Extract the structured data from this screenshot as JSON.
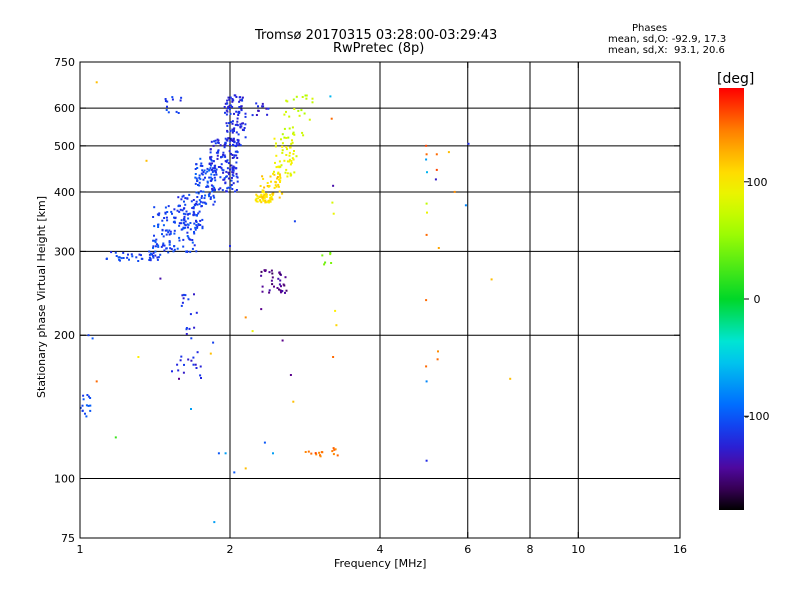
{
  "chart_data": {
    "type": "scatter",
    "title": "Tromsø 20170315 03:28:00-03:29:43",
    "subtitle": "RwPretec (8p)",
    "xlabel": "Frequency [MHz]",
    "ylabel": "Stationary phase Virtual Height [km]",
    "x_scale": "log",
    "y_scale": "log",
    "xlim": [
      1,
      16
    ],
    "ylim": [
      75,
      750
    ],
    "xticks": [
      1,
      2,
      4,
      6,
      8,
      10,
      16
    ],
    "xtick_labels": [
      "1",
      "2",
      "4",
      "6",
      "8",
      "10",
      "16"
    ],
    "yticks": [
      75,
      100,
      200,
      300,
      400,
      500,
      600,
      750
    ],
    "ytick_labels": [
      "75",
      "100",
      "200",
      "300",
      "400",
      "500",
      "600",
      "750"
    ],
    "x_gridlines": [
      2,
      4,
      6,
      8,
      10
    ],
    "y_gridlines": [
      100,
      200,
      300,
      400,
      500,
      600
    ],
    "grid": true,
    "legend": {
      "heading": "Phases",
      "lines": [
        "mean, sd,O: -92.9, 17.3",
        "mean, sd,X:  93.1, 20.6"
      ],
      "placement": "top-right"
    },
    "colorbar": {
      "label": "[deg]",
      "ticks": [
        100,
        0,
        -100
      ],
      "tick_labels": [
        "100",
        "0",
        "-100"
      ],
      "range": [
        -180,
        180
      ]
    },
    "clusters": [
      {
        "x_range": [
          1.13,
          1.45
        ],
        "h_range": [
          285,
          300
        ],
        "phase": -110,
        "n": 40
      },
      {
        "x_range": [
          1.4,
          1.72
        ],
        "h_range": [
          298,
          375
        ],
        "phase": -108,
        "n": 130
      },
      {
        "x_range": [
          1.55,
          1.78
        ],
        "h_range": [
          335,
          395
        ],
        "phase": -115,
        "n": 50
      },
      {
        "x_range": [
          1.7,
          1.88
        ],
        "h_range": [
          375,
          470
        ],
        "phase": -105,
        "n": 80
      },
      {
        "x_range": [
          1.82,
          2.08
        ],
        "h_range": [
          400,
          520
        ],
        "phase": -118,
        "n": 140
      },
      {
        "x_range": [
          1.95,
          2.15
        ],
        "h_range": [
          500,
          640
        ],
        "phase": -120,
        "n": 100
      },
      {
        "x_range": [
          1.48,
          1.6
        ],
        "h_range": [
          580,
          635
        ],
        "phase": -112,
        "n": 12
      },
      {
        "x_range": [
          2.2,
          2.4
        ],
        "h_range": [
          580,
          615
        ],
        "phase": -125,
        "n": 12
      },
      {
        "x_range": [
          2.25,
          2.42
        ],
        "h_range": [
          380,
          395
        ],
        "phase": 105,
        "n": 45
      },
      {
        "x_range": [
          2.3,
          2.55
        ],
        "h_range": [
          385,
          440
        ],
        "phase": 110,
        "n": 45
      },
      {
        "x_range": [
          2.45,
          2.72
        ],
        "h_range": [
          430,
          520
        ],
        "phase": 90,
        "n": 50
      },
      {
        "x_range": [
          2.55,
          2.95
        ],
        "h_range": [
          520,
          640
        ],
        "phase": 70,
        "n": 30
      },
      {
        "x_range": [
          2.3,
          2.6
        ],
        "h_range": [
          245,
          275
        ],
        "phase": -150,
        "n": 35
      },
      {
        "x_range": [
          1.6,
          1.72
        ],
        "h_range": [
          195,
          245
        ],
        "phase": -118,
        "n": 16
      },
      {
        "x_range": [
          1.55,
          1.75
        ],
        "h_range": [
          160,
          185
        ],
        "phase": -122,
        "n": 16
      },
      {
        "x_range": [
          1.0,
          1.05
        ],
        "h_range": [
          135,
          150
        ],
        "phase": -108,
        "n": 15
      },
      {
        "x_range": [
          2.8,
          3.1
        ],
        "h_range": [
          111,
          114
        ],
        "phase": 150,
        "n": 10
      },
      {
        "x_range": [
          3.2,
          3.3
        ],
        "h_range": [
          111,
          116
        ],
        "phase": 150,
        "n": 6
      },
      {
        "x_range": [
          3.05,
          3.2
        ],
        "h_range": [
          280,
          300
        ],
        "phase": 40,
        "n": 6
      }
    ],
    "points": [
      {
        "x": 1.04,
        "y": 200,
        "phase": -110
      },
      {
        "x": 1.06,
        "y": 197,
        "phase": -100
      },
      {
        "x": 1.08,
        "y": 160,
        "phase": 150
      },
      {
        "x": 1.08,
        "y": 680,
        "phase": 120
      },
      {
        "x": 1.18,
        "y": 122,
        "phase": 20
      },
      {
        "x": 1.31,
        "y": 180,
        "phase": 100
      },
      {
        "x": 1.36,
        "y": 465,
        "phase": 120
      },
      {
        "x": 1.45,
        "y": 263,
        "phase": -140
      },
      {
        "x": 1.53,
        "y": 168,
        "phase": -120
      },
      {
        "x": 1.58,
        "y": 162,
        "phase": -150
      },
      {
        "x": 1.67,
        "y": 140,
        "phase": -70
      },
      {
        "x": 1.83,
        "y": 183,
        "phase": 120
      },
      {
        "x": 1.85,
        "y": 193,
        "phase": -110
      },
      {
        "x": 1.86,
        "y": 81,
        "phase": -70
      },
      {
        "x": 1.9,
        "y": 113,
        "phase": -100
      },
      {
        "x": 1.96,
        "y": 113,
        "phase": -70
      },
      {
        "x": 2.0,
        "y": 308,
        "phase": -120
      },
      {
        "x": 2.04,
        "y": 103,
        "phase": -100
      },
      {
        "x": 2.15,
        "y": 105,
        "phase": 120
      },
      {
        "x": 2.15,
        "y": 218,
        "phase": 140
      },
      {
        "x": 2.22,
        "y": 204,
        "phase": 90
      },
      {
        "x": 2.31,
        "y": 227,
        "phase": -150
      },
      {
        "x": 2.35,
        "y": 119,
        "phase": -100
      },
      {
        "x": 2.44,
        "y": 113,
        "phase": -70
      },
      {
        "x": 2.55,
        "y": 195,
        "phase": -150
      },
      {
        "x": 2.65,
        "y": 165,
        "phase": -150
      },
      {
        "x": 2.7,
        "y": 347,
        "phase": -110
      },
      {
        "x": 2.68,
        "y": 145,
        "phase": 120
      },
      {
        "x": 3.18,
        "y": 635,
        "phase": -60
      },
      {
        "x": 3.2,
        "y": 570,
        "phase": 150
      },
      {
        "x": 3.22,
        "y": 412,
        "phase": -140
      },
      {
        "x": 3.21,
        "y": 380,
        "phase": 80
      },
      {
        "x": 3.23,
        "y": 360,
        "phase": 90
      },
      {
        "x": 3.25,
        "y": 225,
        "phase": 100
      },
      {
        "x": 3.27,
        "y": 210,
        "phase": 110
      },
      {
        "x": 3.22,
        "y": 180,
        "phase": 150
      },
      {
        "x": 4.95,
        "y": 500,
        "phase": 160
      },
      {
        "x": 4.96,
        "y": 480,
        "phase": 150
      },
      {
        "x": 4.95,
        "y": 468,
        "phase": -70
      },
      {
        "x": 4.97,
        "y": 440,
        "phase": -60
      },
      {
        "x": 4.96,
        "y": 378,
        "phase": 70
      },
      {
        "x": 4.97,
        "y": 362,
        "phase": 90
      },
      {
        "x": 4.96,
        "y": 325,
        "phase": 150
      },
      {
        "x": 4.95,
        "y": 237,
        "phase": 150
      },
      {
        "x": 4.95,
        "y": 172,
        "phase": 150
      },
      {
        "x": 4.96,
        "y": 160,
        "phase": -80
      },
      {
        "x": 4.96,
        "y": 109,
        "phase": -120
      },
      {
        "x": 5.2,
        "y": 480,
        "phase": 150
      },
      {
        "x": 5.2,
        "y": 445,
        "phase": 160
      },
      {
        "x": 5.18,
        "y": 425,
        "phase": -130
      },
      {
        "x": 5.25,
        "y": 305,
        "phase": 130
      },
      {
        "x": 5.23,
        "y": 185,
        "phase": 140
      },
      {
        "x": 5.22,
        "y": 178,
        "phase": 150
      },
      {
        "x": 5.5,
        "y": 485,
        "phase": 120
      },
      {
        "x": 5.65,
        "y": 400,
        "phase": 140
      },
      {
        "x": 5.95,
        "y": 375,
        "phase": -80
      },
      {
        "x": 6.02,
        "y": 505,
        "phase": -120
      },
      {
        "x": 6.7,
        "y": 262,
        "phase": 120
      },
      {
        "x": 7.3,
        "y": 162,
        "phase": 120
      }
    ]
  }
}
